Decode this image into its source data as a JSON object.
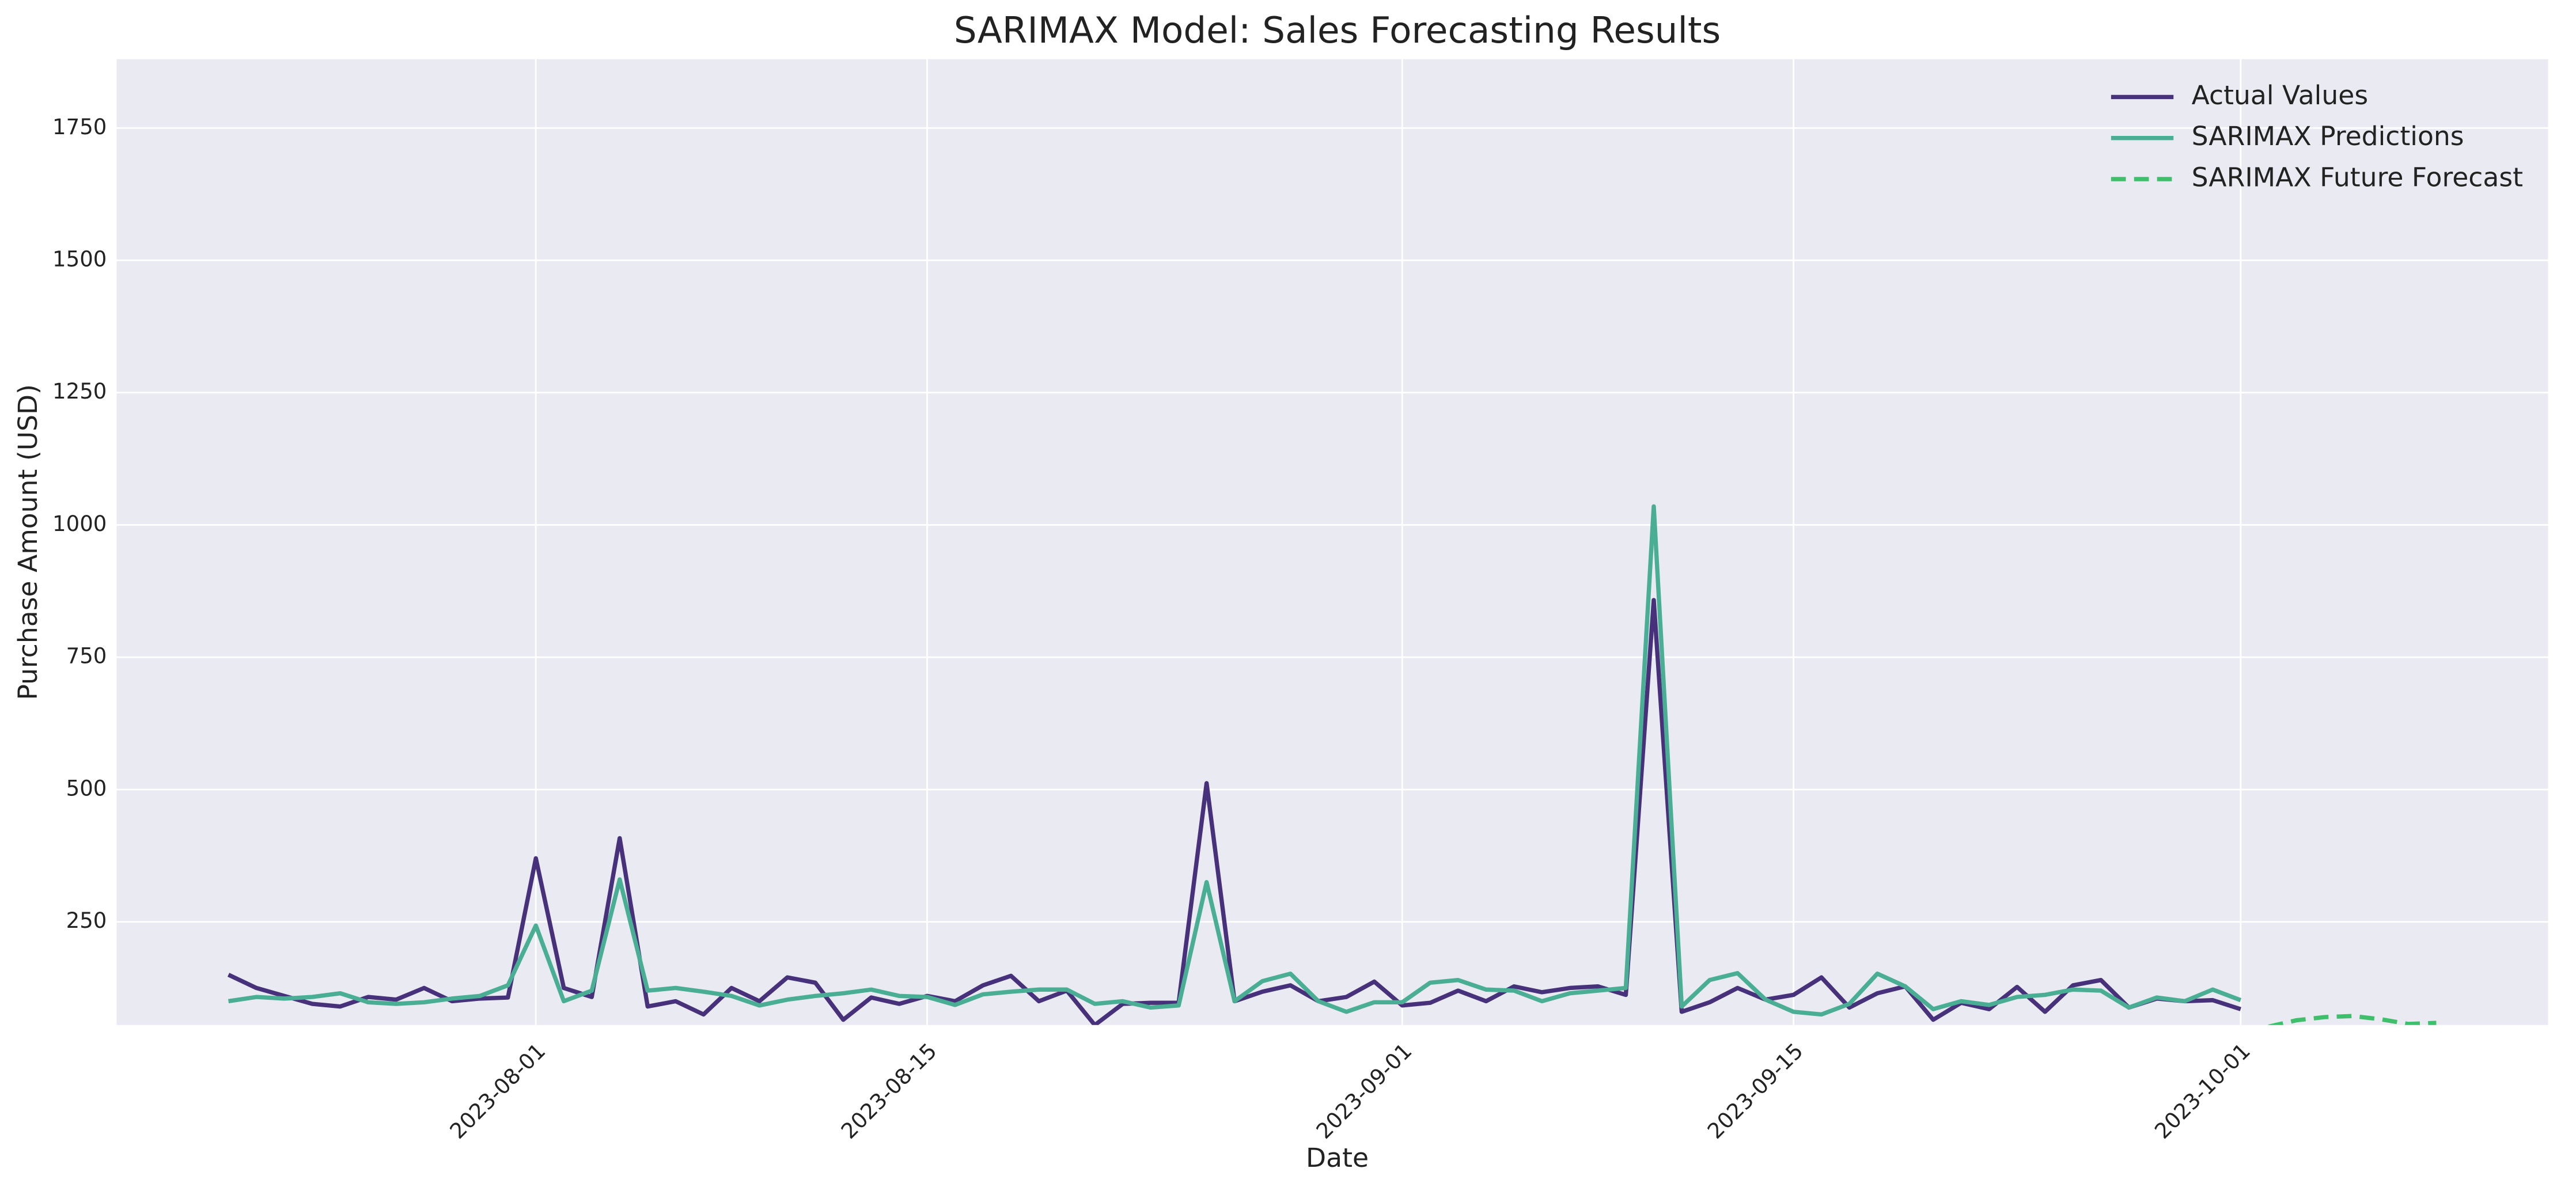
{
  "chart_data": {
    "type": "line",
    "title": "SARIMAX Model: Sales Forecasting Results",
    "xlabel": "Date",
    "ylabel": "Purchase Amount (USD)",
    "xlim": [
      "2023-07-17",
      "2023-10-12"
    ],
    "ylim": [
      55,
      1880
    ],
    "xticks": [
      "2023-08-01",
      "2023-08-15",
      "2023-09-01",
      "2023-09-15",
      "2023-10-01"
    ],
    "yticks": [
      250,
      500,
      750,
      1000,
      1250,
      1500,
      1750
    ],
    "grid": true,
    "legend": "upper right",
    "series": [
      {
        "name": "Actual Values",
        "color": "#46317a",
        "style": "solid",
        "x": [
          "2023-07-21",
          "2023-07-22",
          "2023-07-23",
          "2023-07-24",
          "2023-07-25",
          "2023-07-26",
          "2023-07-27",
          "2023-07-28",
          "2023-07-29",
          "2023-07-30",
          "2023-07-31",
          "2023-08-01",
          "2023-08-02",
          "2023-08-03",
          "2023-08-04",
          "2023-08-05",
          "2023-08-06",
          "2023-08-07",
          "2023-08-08",
          "2023-08-09",
          "2023-08-10",
          "2023-08-11",
          "2023-08-12",
          "2023-08-13",
          "2023-08-14",
          "2023-08-15",
          "2023-08-16",
          "2023-08-17",
          "2023-08-18",
          "2023-08-19",
          "2023-08-20",
          "2023-08-21",
          "2023-08-22",
          "2023-08-23",
          "2023-08-24",
          "2023-08-25",
          "2023-08-26",
          "2023-08-27",
          "2023-08-28",
          "2023-08-29",
          "2023-08-30",
          "2023-08-31",
          "2023-09-01",
          "2023-09-02",
          "2023-09-03",
          "2023-09-04",
          "2023-09-05",
          "2023-09-06",
          "2023-09-07",
          "2023-09-08",
          "2023-09-09",
          "2023-09-10",
          "2023-09-11",
          "2023-09-12",
          "2023-09-13",
          "2023-09-14",
          "2023-09-15",
          "2023-09-16",
          "2023-09-17",
          "2023-09-18",
          "2023-09-19",
          "2023-09-20",
          "2023-09-21",
          "2023-09-22",
          "2023-09-23",
          "2023-09-24",
          "2023-09-25",
          "2023-09-26",
          "2023-09-27",
          "2023-09-28",
          "2023-09-29",
          "2023-09-30",
          "2023-10-01"
        ],
        "values": [
          150,
          125,
          110,
          95,
          90,
          108,
          103,
          125,
          100,
          105,
          107,
          370,
          125,
          108,
          408,
          90,
          100,
          75,
          125,
          100,
          145,
          135,
          65,
          107,
          95,
          110,
          100,
          130,
          148,
          100,
          120,
          55,
          95,
          97,
          97,
          512,
          100,
          118,
          130,
          100,
          108,
          137,
          92,
          97,
          120,
          100,
          128,
          117,
          125,
          128,
          112,
          858,
          80,
          98,
          125,
          103,
          112,
          145,
          88,
          115,
          128,
          65,
          97,
          85,
          127,
          80,
          130,
          140,
          88,
          105,
          100,
          102,
          85
        ]
      },
      {
        "name": "SARIMAX Predictions",
        "color": "#4aae95",
        "style": "solid",
        "x": [
          "2023-07-21",
          "2023-07-22",
          "2023-07-23",
          "2023-07-24",
          "2023-07-25",
          "2023-07-26",
          "2023-07-27",
          "2023-07-28",
          "2023-07-29",
          "2023-07-30",
          "2023-07-31",
          "2023-08-01",
          "2023-08-02",
          "2023-08-03",
          "2023-08-04",
          "2023-08-05",
          "2023-08-06",
          "2023-08-07",
          "2023-08-08",
          "2023-08-09",
          "2023-08-10",
          "2023-08-11",
          "2023-08-12",
          "2023-08-13",
          "2023-08-14",
          "2023-08-15",
          "2023-08-16",
          "2023-08-17",
          "2023-08-18",
          "2023-08-19",
          "2023-08-20",
          "2023-08-21",
          "2023-08-22",
          "2023-08-23",
          "2023-08-24",
          "2023-08-25",
          "2023-08-26",
          "2023-08-27",
          "2023-08-28",
          "2023-08-29",
          "2023-08-30",
          "2023-08-31",
          "2023-09-01",
          "2023-09-02",
          "2023-09-03",
          "2023-09-04",
          "2023-09-05",
          "2023-09-06",
          "2023-09-07",
          "2023-09-08",
          "2023-09-09",
          "2023-09-10",
          "2023-09-11",
          "2023-09-12",
          "2023-09-13",
          "2023-09-14",
          "2023-09-15",
          "2023-09-16",
          "2023-09-17",
          "2023-09-18",
          "2023-09-19",
          "2023-09-20",
          "2023-09-21",
          "2023-09-22",
          "2023-09-23",
          "2023-09-24",
          "2023-09-25",
          "2023-09-26",
          "2023-09-27",
          "2023-09-28",
          "2023-09-29",
          "2023-09-30",
          "2023-10-01"
        ],
        "values": [
          100,
          108,
          105,
          108,
          115,
          98,
          95,
          98,
          105,
          110,
          130,
          243,
          100,
          120,
          330,
          120,
          125,
          118,
          110,
          92,
          103,
          110,
          115,
          122,
          110,
          108,
          93,
          113,
          118,
          122,
          122,
          95,
          100,
          88,
          92,
          325,
          100,
          138,
          152,
          100,
          80,
          98,
          98,
          135,
          140,
          122,
          120,
          100,
          115,
          120,
          125,
          1035,
          90,
          140,
          153,
          103,
          80,
          75,
          95,
          152,
          128,
          85,
          100,
          93,
          108,
          112,
          122,
          120,
          88,
          107,
          100,
          122,
          102
        ]
      },
      {
        "name": "SARIMAX Future Forecast",
        "color": "#3dbf6b",
        "style": "dashed",
        "x": [
          "2023-10-02",
          "2023-10-03",
          "2023-10-04",
          "2023-10-05",
          "2023-10-06",
          "2023-10-07",
          "2023-10-08"
        ],
        "values": [
          52,
          64,
          70,
          72,
          66,
          57,
          59
        ]
      }
    ]
  }
}
